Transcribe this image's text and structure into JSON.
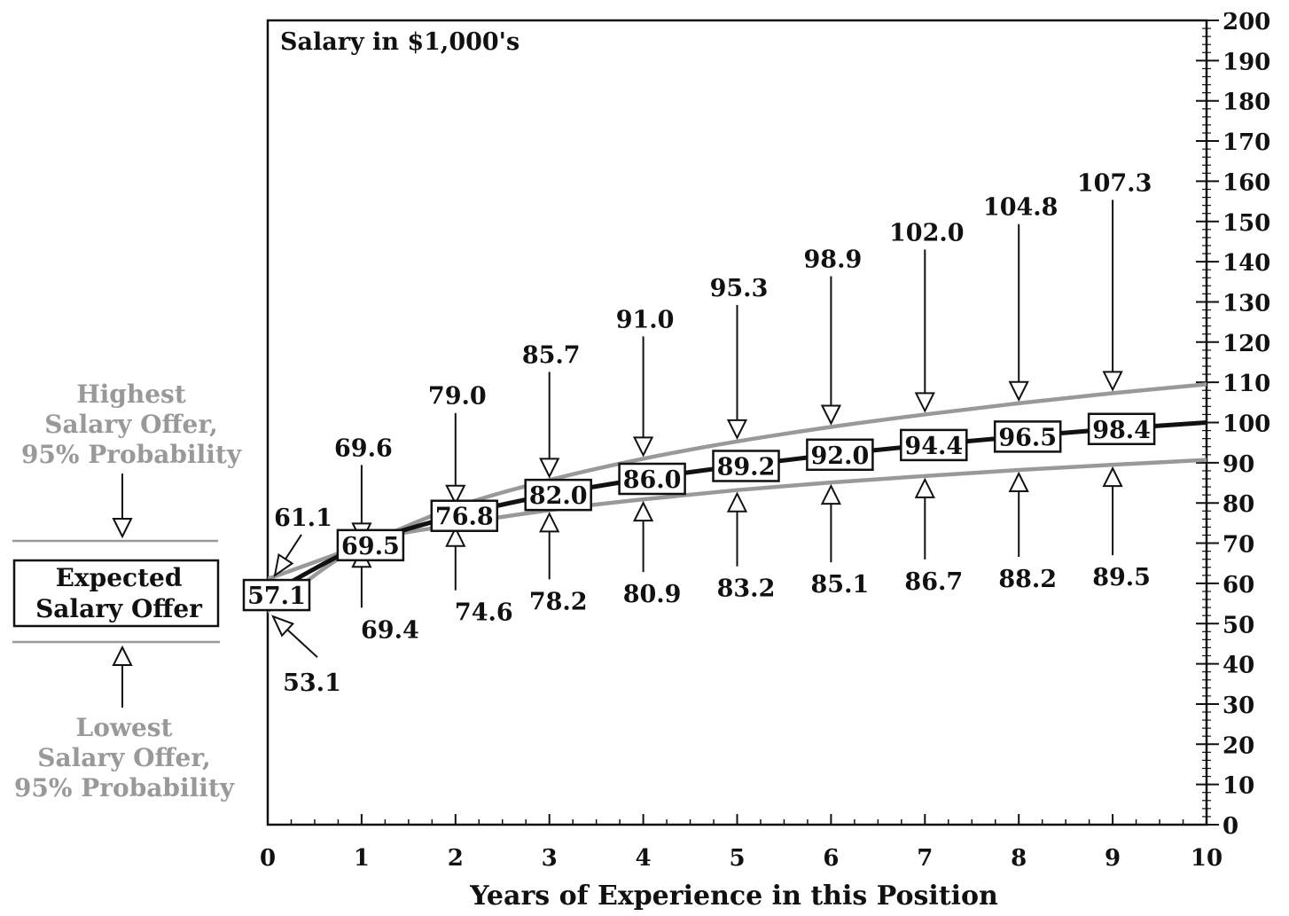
{
  "chart_data": {
    "type": "line",
    "title": "Salary in $1,000's",
    "xlabel": "Years of Experience in this Position",
    "ylabel": "",
    "xlim": [
      0,
      10
    ],
    "ylim": [
      0,
      200
    ],
    "x_ticks": [
      "0",
      "1",
      "2",
      "3",
      "4",
      "5",
      "6",
      "7",
      "8",
      "9",
      "10"
    ],
    "y_ticks": [
      "0",
      "10",
      "20",
      "30",
      "40",
      "50",
      "60",
      "70",
      "80",
      "90",
      "100",
      "110",
      "120",
      "130",
      "140",
      "150",
      "160",
      "170",
      "180",
      "190",
      "200"
    ],
    "x": [
      0,
      1,
      2,
      3,
      4,
      5,
      6,
      7,
      8,
      9
    ],
    "expected_labels": [
      "57.1",
      "69.5",
      "76.8",
      "82.0",
      "86.0",
      "89.2",
      "92.0",
      "94.4",
      "96.5",
      "98.4"
    ],
    "high_labels": [
      "61.1",
      "69.6",
      "79.0",
      "85.7",
      "91.0",
      "95.3",
      "98.9",
      "102.0",
      "104.8",
      "107.3"
    ],
    "low_labels": [
      "53.1",
      "69.4",
      "74.6",
      "78.2",
      "80.9",
      "83.2",
      "85.1",
      "86.7",
      "88.2",
      "89.5"
    ],
    "series": [
      {
        "key": "high",
        "color": "#999999",
        "x": [
          0,
          1,
          2,
          3,
          4,
          5,
          6,
          7,
          8,
          9,
          10
        ],
        "values": [
          61.1,
          69.6,
          79.0,
          85.7,
          91.0,
          95.3,
          98.9,
          102.0,
          104.8,
          107.3,
          109.5
        ]
      },
      {
        "key": "expected",
        "color": "#111111",
        "x": [
          0,
          1,
          2,
          3,
          4,
          5,
          6,
          7,
          8,
          9,
          10
        ],
        "values": [
          57.1,
          69.5,
          76.8,
          82.0,
          86.0,
          89.2,
          92.0,
          94.4,
          96.5,
          98.4,
          100.0
        ]
      },
      {
        "key": "low",
        "color": "#999999",
        "x": [
          0,
          1,
          2,
          3,
          4,
          5,
          6,
          7,
          8,
          9,
          10
        ],
        "values": [
          53.1,
          69.4,
          74.6,
          78.2,
          80.9,
          83.2,
          85.1,
          86.7,
          88.2,
          89.5,
          90.7
        ]
      }
    ],
    "legend": {
      "high": [
        "Highest",
        "Salary Offer,",
        "95% Probability"
      ],
      "expected": [
        "Expected",
        "Salary Offer"
      ],
      "low": [
        "Lowest",
        "Salary Offer,",
        "95% Probability"
      ]
    }
  }
}
